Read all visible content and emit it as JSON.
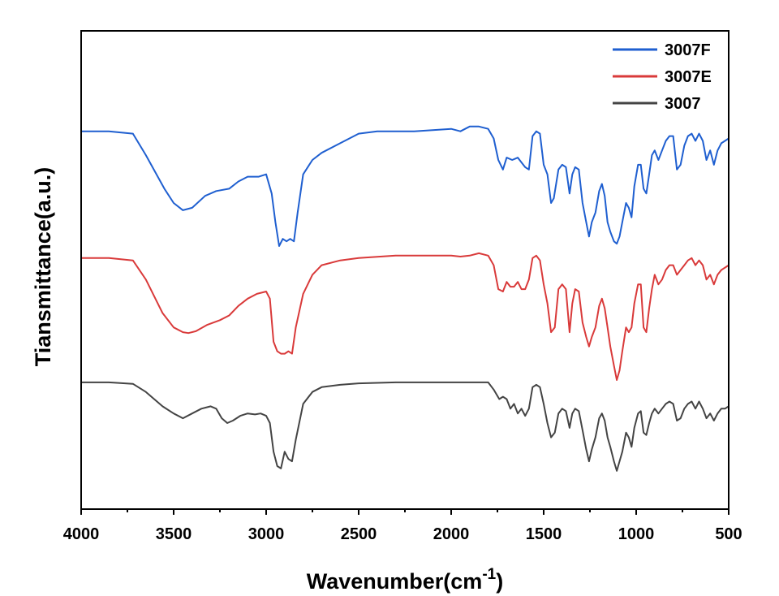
{
  "chart_data": {
    "type": "line",
    "xlabel": "Wavenumber(cm",
    "xlabel_sup": "-1",
    "xlabel_close": ")",
    "ylabel": "Tiansmittance(a.u.)",
    "xlim": [
      4000,
      500
    ],
    "x_reversed": true,
    "ylim": [
      0,
      1
    ],
    "y_ticks_shown": false,
    "grid": false,
    "legend_position": "top-right",
    "x_ticks": [
      4000,
      3500,
      3000,
      2500,
      2000,
      1500,
      1000,
      500
    ],
    "x_tick_labels": [
      "4000",
      "3500",
      "3000",
      "2500",
      "2000",
      "1500",
      "1000",
      "500"
    ],
    "series": [
      {
        "name": "3007F",
        "color": "#1f5fd0",
        "points": [
          [
            4000,
            0.79
          ],
          [
            3850,
            0.79
          ],
          [
            3720,
            0.785
          ],
          [
            3650,
            0.74
          ],
          [
            3550,
            0.67
          ],
          [
            3500,
            0.64
          ],
          [
            3450,
            0.625
          ],
          [
            3400,
            0.63
          ],
          [
            3330,
            0.655
          ],
          [
            3270,
            0.665
          ],
          [
            3200,
            0.67
          ],
          [
            3150,
            0.685
          ],
          [
            3100,
            0.695
          ],
          [
            3040,
            0.695
          ],
          [
            3000,
            0.7
          ],
          [
            2970,
            0.66
          ],
          [
            2950,
            0.6
          ],
          [
            2930,
            0.55
          ],
          [
            2910,
            0.565
          ],
          [
            2890,
            0.56
          ],
          [
            2870,
            0.565
          ],
          [
            2850,
            0.56
          ],
          [
            2830,
            0.62
          ],
          [
            2800,
            0.7
          ],
          [
            2750,
            0.73
          ],
          [
            2700,
            0.745
          ],
          [
            2600,
            0.765
          ],
          [
            2500,
            0.785
          ],
          [
            2400,
            0.79
          ],
          [
            2200,
            0.79
          ],
          [
            2000,
            0.795
          ],
          [
            1950,
            0.79
          ],
          [
            1900,
            0.8
          ],
          [
            1850,
            0.8
          ],
          [
            1800,
            0.795
          ],
          [
            1770,
            0.775
          ],
          [
            1745,
            0.73
          ],
          [
            1720,
            0.71
          ],
          [
            1700,
            0.735
          ],
          [
            1670,
            0.73
          ],
          [
            1640,
            0.735
          ],
          [
            1620,
            0.725
          ],
          [
            1600,
            0.715
          ],
          [
            1580,
            0.71
          ],
          [
            1560,
            0.78
          ],
          [
            1540,
            0.79
          ],
          [
            1520,
            0.785
          ],
          [
            1500,
            0.72
          ],
          [
            1480,
            0.7
          ],
          [
            1460,
            0.64
          ],
          [
            1445,
            0.65
          ],
          [
            1420,
            0.71
          ],
          [
            1400,
            0.72
          ],
          [
            1380,
            0.715
          ],
          [
            1360,
            0.66
          ],
          [
            1345,
            0.7
          ],
          [
            1330,
            0.715
          ],
          [
            1310,
            0.71
          ],
          [
            1290,
            0.64
          ],
          [
            1270,
            0.6
          ],
          [
            1255,
            0.57
          ],
          [
            1240,
            0.6
          ],
          [
            1220,
            0.62
          ],
          [
            1200,
            0.665
          ],
          [
            1185,
            0.68
          ],
          [
            1170,
            0.655
          ],
          [
            1155,
            0.6
          ],
          [
            1140,
            0.58
          ],
          [
            1120,
            0.56
          ],
          [
            1105,
            0.555
          ],
          [
            1090,
            0.57
          ],
          [
            1075,
            0.6
          ],
          [
            1055,
            0.64
          ],
          [
            1040,
            0.63
          ],
          [
            1025,
            0.61
          ],
          [
            1010,
            0.675
          ],
          [
            990,
            0.72
          ],
          [
            975,
            0.72
          ],
          [
            960,
            0.67
          ],
          [
            945,
            0.66
          ],
          [
            930,
            0.7
          ],
          [
            915,
            0.74
          ],
          [
            900,
            0.75
          ],
          [
            880,
            0.73
          ],
          [
            860,
            0.75
          ],
          [
            840,
            0.77
          ],
          [
            820,
            0.78
          ],
          [
            800,
            0.78
          ],
          [
            780,
            0.71
          ],
          [
            760,
            0.72
          ],
          [
            740,
            0.76
          ],
          [
            720,
            0.78
          ],
          [
            700,
            0.785
          ],
          [
            680,
            0.77
          ],
          [
            660,
            0.785
          ],
          [
            640,
            0.77
          ],
          [
            620,
            0.73
          ],
          [
            600,
            0.75
          ],
          [
            580,
            0.72
          ],
          [
            560,
            0.75
          ],
          [
            540,
            0.765
          ],
          [
            520,
            0.77
          ],
          [
            500,
            0.775
          ]
        ]
      },
      {
        "name": "3007E",
        "color": "#d93a3a",
        "points": [
          [
            4000,
            0.525
          ],
          [
            3850,
            0.525
          ],
          [
            3720,
            0.52
          ],
          [
            3650,
            0.48
          ],
          [
            3560,
            0.41
          ],
          [
            3500,
            0.38
          ],
          [
            3450,
            0.37
          ],
          [
            3420,
            0.368
          ],
          [
            3380,
            0.372
          ],
          [
            3320,
            0.385
          ],
          [
            3250,
            0.395
          ],
          [
            3200,
            0.405
          ],
          [
            3150,
            0.425
          ],
          [
            3100,
            0.44
          ],
          [
            3050,
            0.45
          ],
          [
            3000,
            0.455
          ],
          [
            2980,
            0.44
          ],
          [
            2960,
            0.35
          ],
          [
            2940,
            0.33
          ],
          [
            2920,
            0.325
          ],
          [
            2900,
            0.325
          ],
          [
            2880,
            0.33
          ],
          [
            2860,
            0.325
          ],
          [
            2840,
            0.38
          ],
          [
            2800,
            0.45
          ],
          [
            2750,
            0.49
          ],
          [
            2700,
            0.51
          ],
          [
            2600,
            0.52
          ],
          [
            2500,
            0.525
          ],
          [
            2300,
            0.53
          ],
          [
            2000,
            0.53
          ],
          [
            1950,
            0.528
          ],
          [
            1900,
            0.53
          ],
          [
            1850,
            0.535
          ],
          [
            1800,
            0.53
          ],
          [
            1770,
            0.51
          ],
          [
            1745,
            0.46
          ],
          [
            1720,
            0.455
          ],
          [
            1700,
            0.475
          ],
          [
            1680,
            0.465
          ],
          [
            1660,
            0.465
          ],
          [
            1640,
            0.475
          ],
          [
            1620,
            0.46
          ],
          [
            1600,
            0.46
          ],
          [
            1580,
            0.48
          ],
          [
            1560,
            0.525
          ],
          [
            1540,
            0.53
          ],
          [
            1520,
            0.52
          ],
          [
            1500,
            0.47
          ],
          [
            1480,
            0.43
          ],
          [
            1460,
            0.37
          ],
          [
            1440,
            0.38
          ],
          [
            1420,
            0.46
          ],
          [
            1400,
            0.47
          ],
          [
            1380,
            0.46
          ],
          [
            1360,
            0.37
          ],
          [
            1345,
            0.43
          ],
          [
            1330,
            0.46
          ],
          [
            1310,
            0.455
          ],
          [
            1290,
            0.39
          ],
          [
            1270,
            0.36
          ],
          [
            1255,
            0.34
          ],
          [
            1240,
            0.36
          ],
          [
            1220,
            0.38
          ],
          [
            1200,
            0.425
          ],
          [
            1185,
            0.44
          ],
          [
            1170,
            0.42
          ],
          [
            1155,
            0.38
          ],
          [
            1140,
            0.34
          ],
          [
            1120,
            0.3
          ],
          [
            1105,
            0.27
          ],
          [
            1090,
            0.29
          ],
          [
            1075,
            0.33
          ],
          [
            1055,
            0.38
          ],
          [
            1040,
            0.37
          ],
          [
            1025,
            0.38
          ],
          [
            1010,
            0.43
          ],
          [
            990,
            0.47
          ],
          [
            975,
            0.47
          ],
          [
            960,
            0.38
          ],
          [
            945,
            0.37
          ],
          [
            930,
            0.42
          ],
          [
            915,
            0.46
          ],
          [
            900,
            0.49
          ],
          [
            880,
            0.47
          ],
          [
            860,
            0.48
          ],
          [
            840,
            0.5
          ],
          [
            820,
            0.51
          ],
          [
            800,
            0.51
          ],
          [
            780,
            0.49
          ],
          [
            760,
            0.5
          ],
          [
            740,
            0.51
          ],
          [
            720,
            0.52
          ],
          [
            700,
            0.525
          ],
          [
            680,
            0.51
          ],
          [
            660,
            0.52
          ],
          [
            640,
            0.51
          ],
          [
            620,
            0.48
          ],
          [
            600,
            0.49
          ],
          [
            580,
            0.47
          ],
          [
            560,
            0.49
          ],
          [
            540,
            0.5
          ],
          [
            520,
            0.505
          ],
          [
            500,
            0.51
          ]
        ]
      },
      {
        "name": "3007",
        "color": "#444444",
        "points": [
          [
            4000,
            0.265
          ],
          [
            3850,
            0.265
          ],
          [
            3720,
            0.262
          ],
          [
            3650,
            0.245
          ],
          [
            3560,
            0.215
          ],
          [
            3500,
            0.2
          ],
          [
            3450,
            0.19
          ],
          [
            3400,
            0.2
          ],
          [
            3350,
            0.21
          ],
          [
            3300,
            0.215
          ],
          [
            3270,
            0.21
          ],
          [
            3240,
            0.19
          ],
          [
            3210,
            0.18
          ],
          [
            3180,
            0.185
          ],
          [
            3140,
            0.195
          ],
          [
            3100,
            0.2
          ],
          [
            3060,
            0.198
          ],
          [
            3030,
            0.2
          ],
          [
            3000,
            0.195
          ],
          [
            2980,
            0.18
          ],
          [
            2960,
            0.12
          ],
          [
            2940,
            0.09
          ],
          [
            2920,
            0.085
          ],
          [
            2900,
            0.12
          ],
          [
            2880,
            0.105
          ],
          [
            2860,
            0.1
          ],
          [
            2840,
            0.145
          ],
          [
            2800,
            0.22
          ],
          [
            2750,
            0.245
          ],
          [
            2700,
            0.255
          ],
          [
            2600,
            0.26
          ],
          [
            2500,
            0.263
          ],
          [
            2300,
            0.265
          ],
          [
            2000,
            0.265
          ],
          [
            1900,
            0.265
          ],
          [
            1800,
            0.265
          ],
          [
            1770,
            0.25
          ],
          [
            1740,
            0.23
          ],
          [
            1720,
            0.235
          ],
          [
            1700,
            0.23
          ],
          [
            1680,
            0.21
          ],
          [
            1660,
            0.22
          ],
          [
            1640,
            0.2
          ],
          [
            1620,
            0.21
          ],
          [
            1600,
            0.195
          ],
          [
            1580,
            0.21
          ],
          [
            1560,
            0.255
          ],
          [
            1540,
            0.26
          ],
          [
            1520,
            0.255
          ],
          [
            1500,
            0.22
          ],
          [
            1480,
            0.18
          ],
          [
            1460,
            0.15
          ],
          [
            1440,
            0.16
          ],
          [
            1420,
            0.2
          ],
          [
            1400,
            0.21
          ],
          [
            1380,
            0.205
          ],
          [
            1360,
            0.17
          ],
          [
            1345,
            0.2
          ],
          [
            1330,
            0.21
          ],
          [
            1310,
            0.205
          ],
          [
            1290,
            0.165
          ],
          [
            1270,
            0.125
          ],
          [
            1255,
            0.1
          ],
          [
            1240,
            0.125
          ],
          [
            1220,
            0.15
          ],
          [
            1200,
            0.19
          ],
          [
            1185,
            0.2
          ],
          [
            1170,
            0.185
          ],
          [
            1155,
            0.15
          ],
          [
            1140,
            0.13
          ],
          [
            1120,
            0.1
          ],
          [
            1105,
            0.08
          ],
          [
            1090,
            0.1
          ],
          [
            1075,
            0.12
          ],
          [
            1055,
            0.16
          ],
          [
            1040,
            0.15
          ],
          [
            1025,
            0.13
          ],
          [
            1010,
            0.17
          ],
          [
            990,
            0.2
          ],
          [
            975,
            0.205
          ],
          [
            960,
            0.16
          ],
          [
            945,
            0.155
          ],
          [
            930,
            0.18
          ],
          [
            915,
            0.2
          ],
          [
            900,
            0.21
          ],
          [
            880,
            0.2
          ],
          [
            860,
            0.21
          ],
          [
            840,
            0.22
          ],
          [
            820,
            0.225
          ],
          [
            800,
            0.22
          ],
          [
            780,
            0.185
          ],
          [
            760,
            0.19
          ],
          [
            740,
            0.21
          ],
          [
            720,
            0.22
          ],
          [
            700,
            0.225
          ],
          [
            680,
            0.21
          ],
          [
            660,
            0.225
          ],
          [
            640,
            0.21
          ],
          [
            620,
            0.19
          ],
          [
            600,
            0.2
          ],
          [
            580,
            0.185
          ],
          [
            560,
            0.2
          ],
          [
            540,
            0.21
          ],
          [
            520,
            0.21
          ],
          [
            500,
            0.215
          ]
        ]
      }
    ]
  }
}
